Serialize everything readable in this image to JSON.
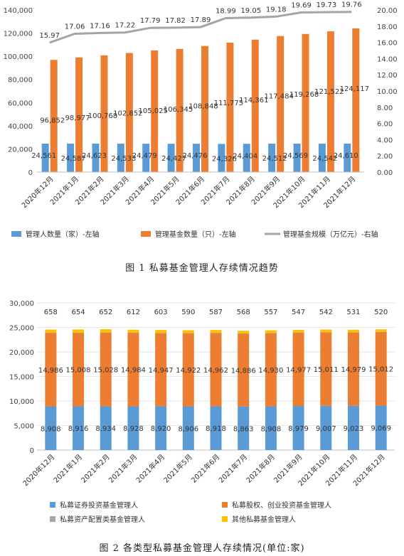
{
  "chart_data": [
    {
      "type": "bar",
      "caption": "图 1 私募基金管理人存续情况趋势",
      "categories": [
        "2020年12月",
        "2021年1月",
        "2021年2月",
        "2021年3月",
        "2021年4月",
        "2021年5月",
        "2021年6月",
        "2021年7月",
        "2021年8月",
        "2021年9月",
        "2021年10月",
        "2021年11月",
        "2021年12月"
      ],
      "series": [
        {
          "name": "管理人数量（家）-左轴",
          "kind": "bar",
          "axis": "left",
          "color": "#5B9BD5",
          "values": [
            24561,
            24587,
            24623,
            24533,
            24479,
            24427,
            24476,
            24326,
            24404,
            24512,
            24569,
            24542,
            24610
          ]
        },
        {
          "name": "管理基金数量（只）-左轴",
          "kind": "bar",
          "axis": "left",
          "color": "#ED7D31",
          "values": [
            96852,
            98977,
            100768,
            102852,
            105025,
            106345,
            108848,
            111775,
            114361,
            117484,
            119268,
            121522,
            124117
          ]
        },
        {
          "name": "管理基金规模（万亿元）-右轴",
          "kind": "line",
          "axis": "right",
          "color": "#A5A5A5",
          "values": [
            15.97,
            17.06,
            17.16,
            17.22,
            17.79,
            17.82,
            17.89,
            18.99,
            19.05,
            19.18,
            19.69,
            19.73,
            19.76
          ]
        }
      ],
      "y_left": {
        "min": 0,
        "max": 140000,
        "ticks": [
          "0",
          "20,000",
          "40,000",
          "60,000",
          "80,000",
          "100,000",
          "120,000",
          "140,000"
        ]
      },
      "y_right": {
        "min": 0,
        "max": 20,
        "ticks": [
          "0.00",
          "2.00",
          "4.00",
          "6.00",
          "8.00",
          "10.00",
          "12.00",
          "14.00",
          "16.00",
          "18.00",
          "20.00"
        ]
      },
      "bar_labels_0": [
        "24,561",
        "24,587",
        "24,623",
        "24,533",
        "24,479",
        "24,427",
        "24,476",
        "24,326",
        "24,404",
        "24,512",
        "24,569",
        "24,542",
        "24,610"
      ],
      "bar_labels_1": [
        "96,852",
        "98,977",
        "100,768",
        "102,852",
        "105,025",
        "106,345",
        "108,848",
        "111,775",
        "114,361",
        "117,484",
        "119,268",
        "121,522",
        "124,117"
      ],
      "line_labels": [
        "15.97",
        "17.06",
        "17.16",
        "17.22",
        "17.79",
        "17.82",
        "17.89",
        "18.99",
        "19.05",
        "19.18",
        "19.69",
        "19.73",
        "19.76"
      ],
      "legend_position": "bottom"
    },
    {
      "type": "bar",
      "stacked": true,
      "caption": "图 2 各类型私募基金管理人存续情况(单位:家)",
      "categories": [
        "2020年12月",
        "2021年1月",
        "2021年2月",
        "2021年3月",
        "2021年4月",
        "2021年5月",
        "2021年6月",
        "2021年7月",
        "2021年8月",
        "2021年9月",
        "2021年10月",
        "2021年11月",
        "2021年12月"
      ],
      "series": [
        {
          "name": "私募证券投资基金管理人",
          "color": "#5B9BD5",
          "values": [
            8908,
            8916,
            8934,
            8928,
            8920,
            8906,
            8918,
            8863,
            8908,
            8979,
            9007,
            9023,
            9069
          ]
        },
        {
          "name": "私募股权、创业投资基金管理人",
          "color": "#ED7D31",
          "values": [
            14986,
            15008,
            15028,
            14984,
            14947,
            14922,
            14962,
            14886,
            14930,
            14977,
            15011,
            14979,
            15012
          ]
        },
        {
          "name": "私募资产配置类基金管理人",
          "color": "#A5A5A5",
          "values": [
            9,
            9,
            9,
            9,
            9,
            9,
            9,
            9,
            9,
            9,
            9,
            9,
            9
          ]
        },
        {
          "name": "其他私募基金管理人",
          "color": "#FFC000",
          "values": [
            658,
            654,
            652,
            612,
            603,
            590,
            587,
            568,
            557,
            547,
            542,
            531,
            520
          ]
        }
      ],
      "y": {
        "min": 0,
        "max": 30000,
        "ticks": [
          "0",
          "5,000",
          "10,000",
          "15,000",
          "20,000",
          "25,000",
          "30,000"
        ]
      },
      "labels_0": [
        "8,908",
        "8,916",
        "8,934",
        "8,928",
        "8,920",
        "8,906",
        "8,918",
        "8,863",
        "8,908",
        "8,979",
        "9,007",
        "9,023",
        "9,069"
      ],
      "labels_1": [
        "14,986",
        "15,008",
        "15,028",
        "14,984",
        "14,947",
        "14,922",
        "14,962",
        "14,886",
        "14,930",
        "14,977",
        "15,011",
        "14,979",
        "15,012"
      ],
      "labels_3": [
        "658",
        "654",
        "652",
        "612",
        "603",
        "590",
        "587",
        "568",
        "557",
        "547",
        "542",
        "531",
        "520"
      ],
      "legend_position": "bottom"
    }
  ]
}
